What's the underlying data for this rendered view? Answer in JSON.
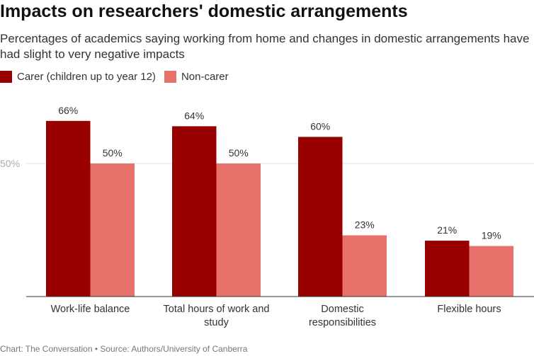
{
  "title": "Impacts on researchers' domestic arrangements",
  "subtitle": "Percentages of academics saying working from home and changes in domestic arrangements have had slight to very negative impacts",
  "footer": "Chart: The Conversation • Source: Authors/University of Canberra",
  "chart_data": {
    "type": "bar",
    "categories": [
      [
        "Work-life balance"
      ],
      [
        "Total hours of work and",
        "study"
      ],
      [
        "Domestic",
        "responsibilities"
      ],
      [
        "Flexible hours"
      ]
    ],
    "series": [
      {
        "name": "Carer (children up to year 12)",
        "color": "#990000",
        "values": [
          66,
          64,
          60,
          21
        ]
      },
      {
        "name": "Non-carer",
        "color": "#e8726b",
        "values": [
          50,
          50,
          23,
          19
        ]
      }
    ],
    "yticks": [
      {
        "value": 50,
        "label": "50%"
      }
    ],
    "ylim": [
      0,
      100
    ],
    "value_suffix": "%",
    "legend": "top-left",
    "grid": true
  }
}
